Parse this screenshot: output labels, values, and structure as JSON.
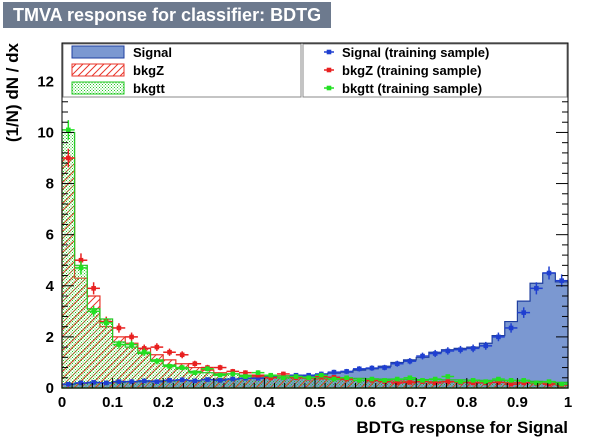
{
  "window": {
    "title": "TMVA response for classifier: BDTG"
  },
  "chart_data": {
    "type": "histogram",
    "title": "TMVA response for classifier: BDTG",
    "xlabel": "BDTG response for Signal",
    "ylabel": "(1/N) dN / dx",
    "xlim": [
      0,
      1
    ],
    "ylim": [
      0,
      13.5
    ],
    "x_ticks": [
      0,
      0.1,
      0.2,
      0.3,
      0.4,
      0.5,
      0.6,
      0.7,
      0.8,
      0.9,
      1
    ],
    "x_tick_labels": [
      "0",
      "0.1",
      "0.2",
      "0.3",
      "0.4",
      "0.5",
      "0.6",
      "0.7",
      "0.8",
      "0.9",
      "1"
    ],
    "y_ticks": [
      0,
      2,
      4,
      6,
      8,
      10,
      12
    ],
    "y_tick_labels": [
      "0",
      "2",
      "4",
      "6",
      "8",
      "10",
      "12"
    ],
    "bin_width": 0.025,
    "bins": 40,
    "series": [
      {
        "name": "Signal",
        "style": "filled",
        "color": "#7b98d1",
        "edge": "#1f3fa0",
        "values": [
          0.15,
          0.18,
          0.2,
          0.2,
          0.22,
          0.25,
          0.25,
          0.28,
          0.28,
          0.3,
          0.3,
          0.33,
          0.35,
          0.35,
          0.38,
          0.4,
          0.4,
          0.42,
          0.45,
          0.48,
          0.52,
          0.58,
          0.62,
          0.7,
          0.75,
          0.85,
          1.0,
          1.1,
          1.2,
          1.4,
          1.5,
          1.55,
          1.6,
          1.75,
          2.05,
          2.6,
          3.4,
          4.1,
          4.5,
          4.15
        ]
      },
      {
        "name": "bkgZ",
        "style": "hatched",
        "color": "#e8352a",
        "values": [
          9.0,
          4.3,
          3.6,
          2.4,
          2.0,
          1.75,
          1.55,
          1.3,
          1.1,
          0.95,
          0.8,
          0.7,
          0.6,
          0.55,
          0.5,
          0.45,
          0.45,
          0.42,
          0.4,
          0.38,
          0.35,
          0.33,
          0.32,
          0.3,
          0.28,
          0.28,
          0.27,
          0.26,
          0.25,
          0.25,
          0.24,
          0.24,
          0.23,
          0.22,
          0.22,
          0.21,
          0.2,
          0.2,
          0.18,
          0.15
        ]
      },
      {
        "name": "bkgtt",
        "style": "dotted",
        "color": "#22c822",
        "values": [
          10.0,
          4.8,
          3.1,
          2.7,
          1.8,
          1.6,
          1.35,
          1.1,
          0.9,
          0.75,
          0.65,
          0.6,
          0.55,
          0.55,
          0.5,
          0.5,
          0.48,
          0.48,
          0.45,
          0.42,
          0.4,
          0.4,
          0.38,
          0.38,
          0.36,
          0.35,
          0.34,
          0.34,
          0.33,
          0.33,
          0.32,
          0.32,
          0.31,
          0.3,
          0.3,
          0.29,
          0.28,
          0.26,
          0.24,
          0.22
        ]
      },
      {
        "name": "Signal (training sample)",
        "style": "points",
        "color": "#1f3fd0",
        "values": [
          0.15,
          0.2,
          0.22,
          0.2,
          0.25,
          0.25,
          0.28,
          0.25,
          0.3,
          0.32,
          0.28,
          0.33,
          0.3,
          0.35,
          0.38,
          0.38,
          0.42,
          0.4,
          0.5,
          0.5,
          0.55,
          0.62,
          0.65,
          0.75,
          0.78,
          0.8,
          0.95,
          1.05,
          1.25,
          1.35,
          1.45,
          1.5,
          1.55,
          1.65,
          2.0,
          2.35,
          2.95,
          3.9,
          4.5,
          4.2
        ]
      },
      {
        "name": "bkgZ (training sample)",
        "style": "points",
        "color": "#e82020",
        "values": [
          9.0,
          5.0,
          3.9,
          2.6,
          2.35,
          2.0,
          1.55,
          1.6,
          1.4,
          1.3,
          0.95,
          0.8,
          0.8,
          0.65,
          0.6,
          0.5,
          0.4,
          0.55,
          0.4,
          0.38,
          0.45,
          0.42,
          0.35,
          0.3,
          0.3,
          0.25,
          0.2,
          0.22,
          0.25,
          0.2,
          0.25,
          0.22,
          0.2,
          0.2,
          0.22,
          0.15,
          0.2,
          0.18,
          0.15,
          0.12
        ]
      },
      {
        "name": "bkgtt (training sample)",
        "style": "points",
        "color": "#22e022",
        "values": [
          10.1,
          4.7,
          3.0,
          2.55,
          1.7,
          1.7,
          1.4,
          1.05,
          0.85,
          0.8,
          0.6,
          0.75,
          0.5,
          0.55,
          0.45,
          0.6,
          0.5,
          0.4,
          0.45,
          0.4,
          0.5,
          0.35,
          0.4,
          0.3,
          0.35,
          0.3,
          0.35,
          0.4,
          0.3,
          0.35,
          0.45,
          0.25,
          0.3,
          0.25,
          0.35,
          0.3,
          0.3,
          0.2,
          0.25,
          0.15
        ]
      }
    ],
    "legend": {
      "left": [
        "Signal",
        "bkgZ",
        "bkgtt"
      ],
      "right": [
        "Signal (training sample)",
        "bkgZ (training sample)",
        "bkgtt (training sample)"
      ],
      "placement": "top"
    }
  }
}
